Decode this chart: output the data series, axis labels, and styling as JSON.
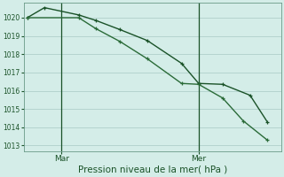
{
  "xlabel": "Pression niveau de la mer( hPa )",
  "background_color": "#d4ede8",
  "grid_color": "#b0d0cb",
  "line_color1": "#1a5228",
  "line_color2": "#2a6b38",
  "ylim": [
    1012.7,
    1020.8
  ],
  "yticks": [
    1013,
    1014,
    1015,
    1016,
    1017,
    1018,
    1019,
    1020
  ],
  "series1_x": [
    0,
    0.5,
    1.5,
    2.0,
    2.7,
    3.5,
    4.5,
    5.0,
    5.7,
    6.5,
    7.0
  ],
  "series1_y": [
    1020.0,
    1020.55,
    1020.15,
    1019.85,
    1019.35,
    1018.75,
    1017.5,
    1016.4,
    1016.35,
    1015.75,
    1014.3
  ],
  "series2_x": [
    0,
    1.5,
    2.0,
    2.7,
    3.5,
    4.5,
    5.0,
    5.7,
    6.3,
    7.0
  ],
  "series2_y": [
    1020.0,
    1020.0,
    1019.4,
    1018.7,
    1017.75,
    1016.4,
    1016.35,
    1015.6,
    1014.35,
    1013.3
  ],
  "mar_x": 1.0,
  "mer_x": 5.0,
  "xlim": [
    -0.1,
    7.4
  ],
  "marker_size": 2.8,
  "line_width": 1.0,
  "ytick_fontsize": 5.5,
  "xtick_fontsize": 6.5,
  "xlabel_fontsize": 7.5
}
